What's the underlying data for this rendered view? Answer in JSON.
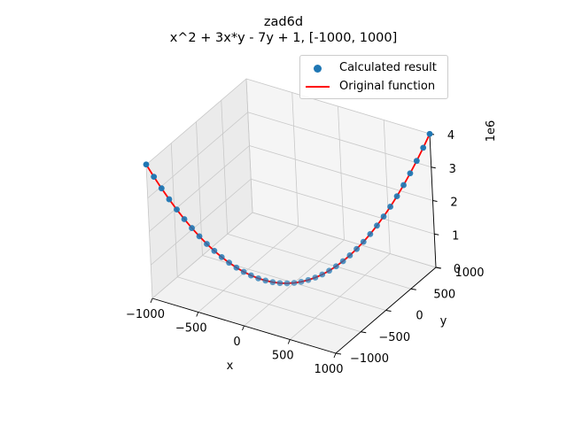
{
  "title_line1": "zad6d",
  "title_line2": "x^2 + 3x*y - 7y + 1, [-1000, 1000]",
  "legend": {
    "scatter_label": "Calculated result",
    "line_label": "Original function"
  },
  "colors": {
    "scatter": "#1f77b4",
    "line": "#ff0000",
    "pane": "#f2f2f2",
    "grid": "#c8c8c8"
  },
  "chart_data": {
    "type": "scatter",
    "projection": "3d",
    "title": "zad6d\nx^2 + 3x*y - 7y + 1, [-1000, 1000]",
    "xlabel": "x",
    "ylabel": "y",
    "zlabel": "",
    "z_offset_label": "1e6",
    "xlim": [
      -1000,
      1000
    ],
    "ylim": [
      -1000,
      1000
    ],
    "zlim": [
      0,
      4000000
    ],
    "x_ticks": [
      "−1000",
      "−500",
      "0",
      "500",
      "1000"
    ],
    "x_tick_values": [
      -1000,
      -500,
      0,
      500,
      1000
    ],
    "y_ticks": [
      "−1000",
      "−500",
      "0",
      "500",
      "1000"
    ],
    "y_tick_values": [
      -1000,
      -500,
      0,
      500,
      1000
    ],
    "z_ticks": [
      "0",
      "1",
      "2",
      "3",
      "4"
    ],
    "z_tick_values": [
      0,
      1000000,
      2000000,
      3000000,
      4000000
    ],
    "grid": true,
    "legend_position": "top-right",
    "series": [
      {
        "name": "Calculated result",
        "kind": "scatter",
        "x_range": [
          -1000,
          1000
        ],
        "points": 41
      },
      {
        "name": "Original function",
        "kind": "line",
        "x_range": [
          -1000,
          1000
        ],
        "points": 41
      }
    ],
    "function": "x^2 + 3x*y - 7y + 1 with y = x"
  }
}
